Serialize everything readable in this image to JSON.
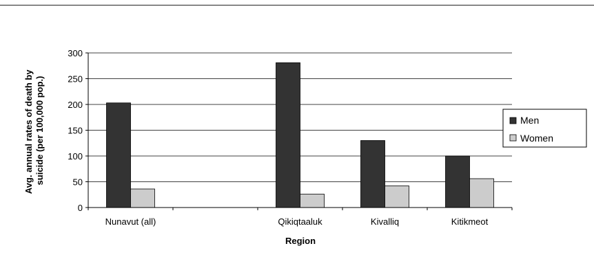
{
  "chart_data": {
    "type": "bar",
    "categories": [
      "Nunavut (all)",
      "",
      "Qikiqtaaluk",
      "Kivalliq",
      "Kitikmeot"
    ],
    "series": [
      {
        "name": "Men",
        "color": "#333333",
        "values": [
          203,
          null,
          281,
          130,
          100
        ]
      },
      {
        "name": "Women",
        "color": "#cccccc",
        "values": [
          36,
          null,
          26,
          42,
          56
        ]
      }
    ],
    "title": "",
    "xlabel": "Region",
    "ylabel": [
      "Avg. annual rates of death by",
      "suicide (per 100,000 pop.)"
    ],
    "ylim": [
      0,
      300
    ],
    "yticks": [
      0,
      50,
      100,
      150,
      200,
      250,
      300
    ],
    "grid": true,
    "legend": "right"
  }
}
